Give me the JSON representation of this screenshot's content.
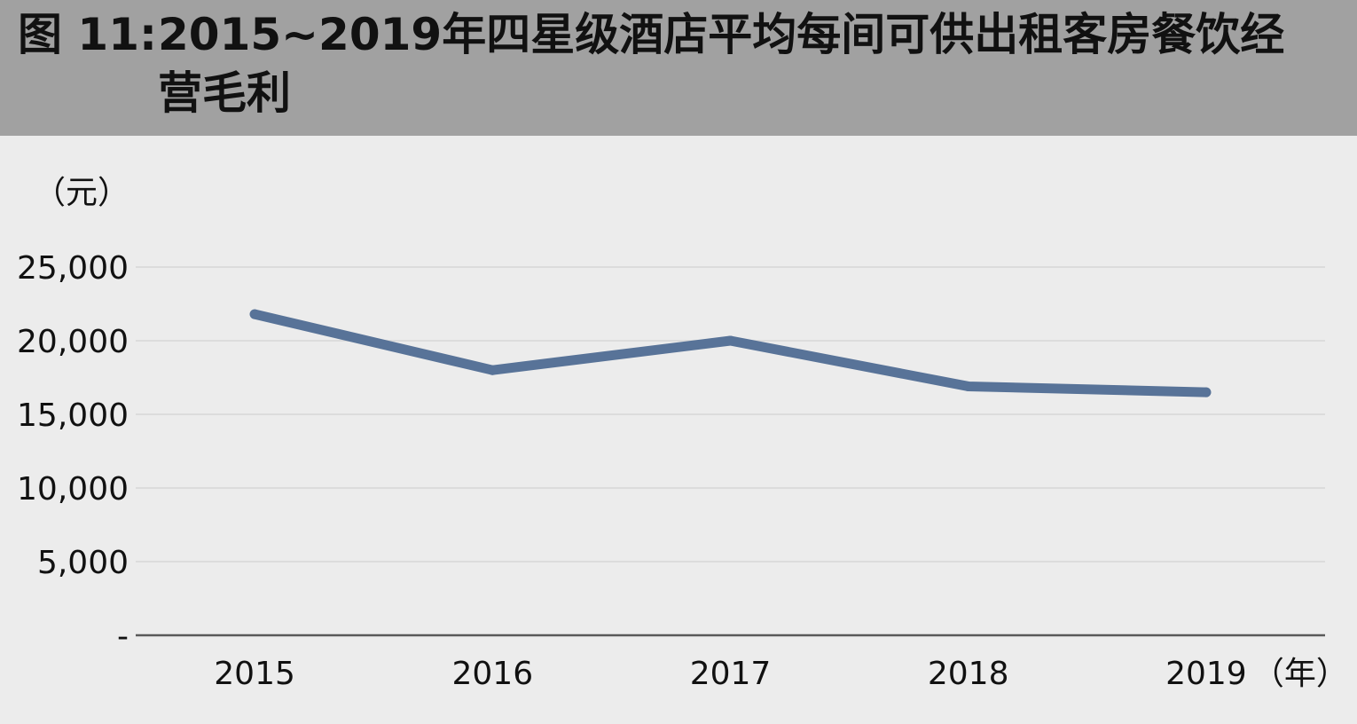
{
  "header": {
    "figure_label": "图 11:",
    "title": "2015~2019年四星级酒店平均每间可供出租客房餐饮经营毛利"
  },
  "chart_data": {
    "type": "line",
    "title": "2015~2019年四星级酒店平均每间可供出租客房餐饮经营毛利",
    "ylabel": "（元）",
    "xlabel": "（年）",
    "categories": [
      "2015",
      "2016",
      "2017",
      "2018",
      "2019"
    ],
    "series": [
      {
        "values": [
          21800,
          18000,
          20000,
          16900,
          16500
        ],
        "color": "#587398"
      }
    ],
    "ylim": [
      0,
      25000
    ],
    "yticks": [
      0,
      5000,
      10000,
      15000,
      20000,
      25000
    ],
    "ytick_labels": [
      "-",
      "5,000",
      "10,000",
      "15,000",
      "20,000",
      "25,000"
    ],
    "grid": true,
    "legend": "none"
  }
}
